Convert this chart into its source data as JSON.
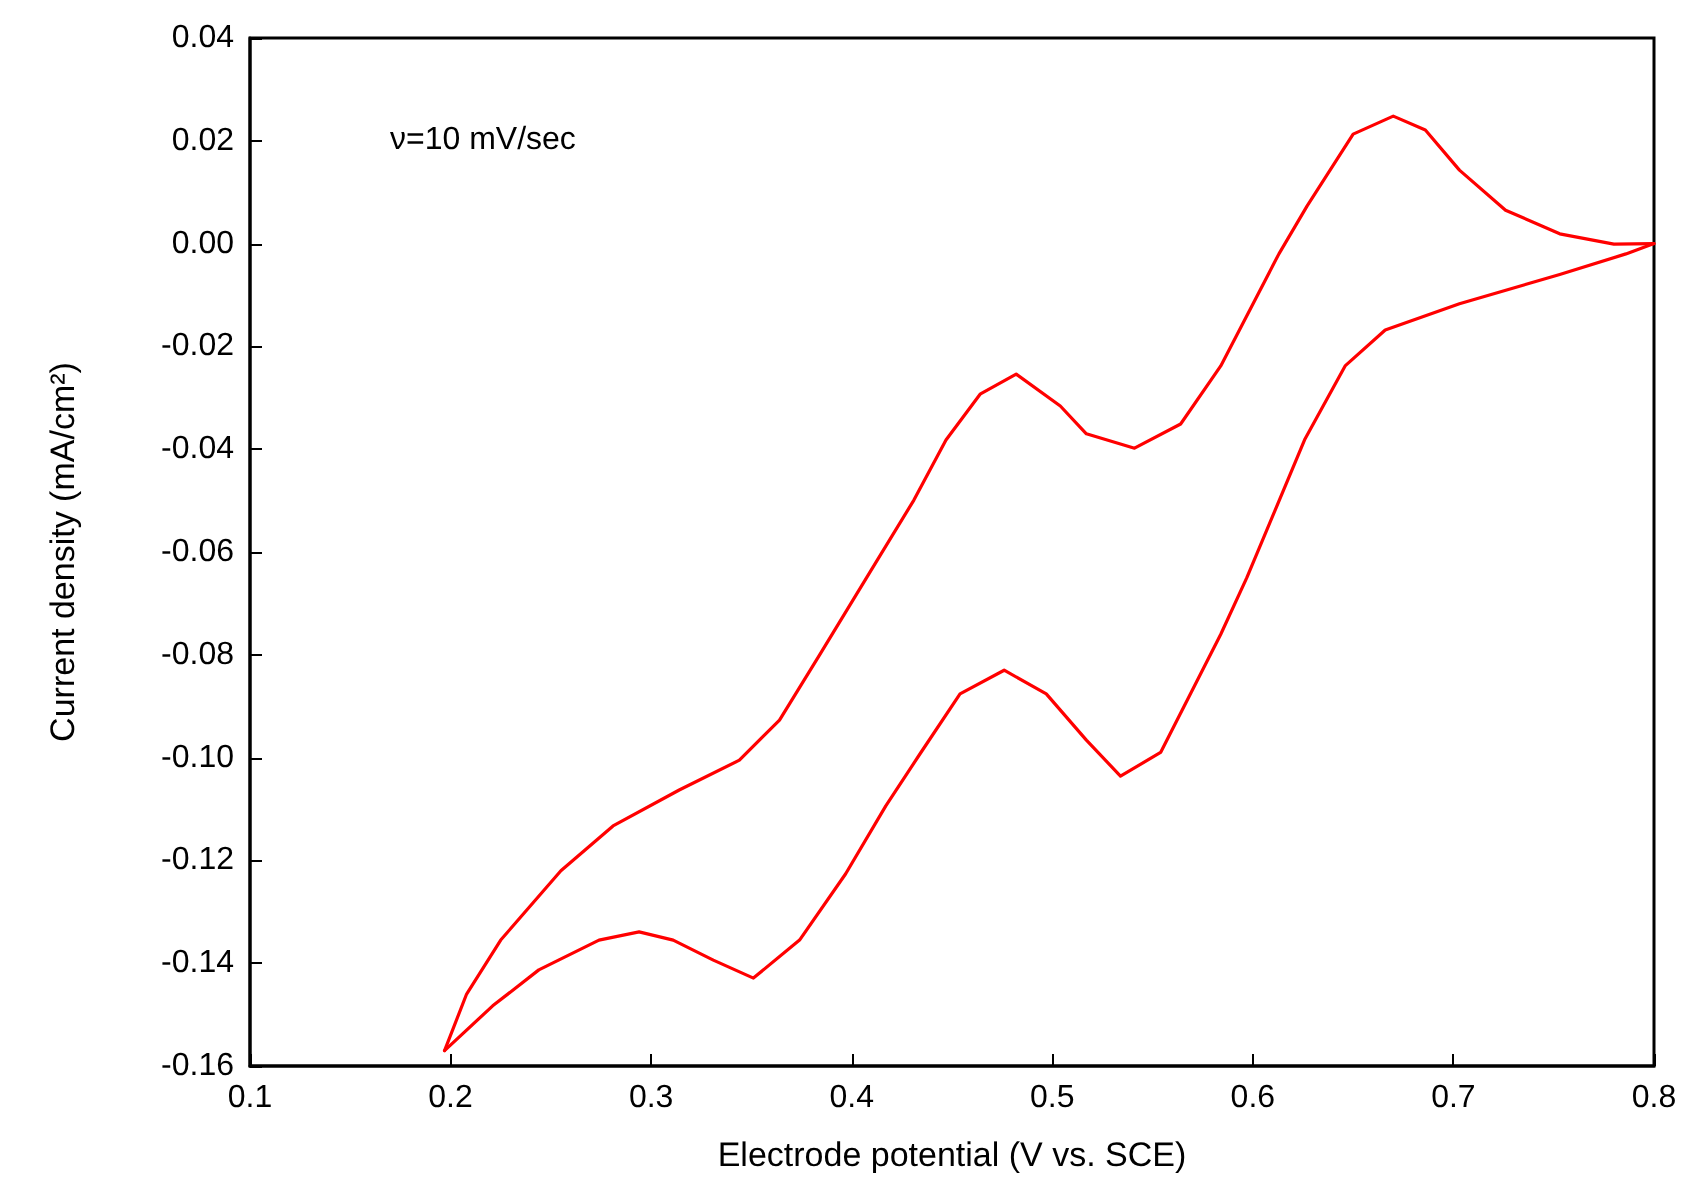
{
  "chart_data": {
    "type": "line",
    "xlabel": "Electrode potential (V vs. SCE)",
    "ylabel": "Current density (mA/cm²)",
    "annotations": [
      "ν=10 mV/sec"
    ],
    "xlim": [
      0.1,
      0.8
    ],
    "xticks": [
      0.1,
      0.2,
      0.3,
      0.4,
      0.5,
      0.6,
      0.7,
      0.8
    ],
    "ylim": [
      -0.16,
      0.04
    ],
    "yticks": [
      {
        "value": -0.16,
        "label": "-0.16"
      },
      {
        "value": -0.14,
        "label": "-0.14"
      },
      {
        "value": -0.12,
        "label": "-0.12"
      },
      {
        "value": -0.1,
        "label": "-0.10"
      },
      {
        "value": -0.08,
        "label": "-0.08"
      },
      {
        "value": -0.06,
        "label": "-0.06"
      },
      {
        "value": -0.04,
        "label": "-0.04"
      },
      {
        "value": -0.02,
        "label": "-0.02"
      },
      {
        "value": 0,
        "label": "0.00"
      },
      {
        "value": 0.02,
        "label": "0.02"
      },
      {
        "value": 0.04,
        "label": "0.04"
      }
    ],
    "grid": false,
    "marker": "none",
    "line_style": "solid",
    "series": [
      {
        "color": "#ff0000",
        "x": [
          0.197,
          0.221,
          0.244,
          0.274,
          0.294,
          0.311,
          0.331,
          0.351,
          0.374,
          0.397,
          0.417,
          0.434,
          0.454,
          0.476,
          0.497,
          0.517,
          0.534,
          0.554,
          0.584,
          0.597,
          0.626,
          0.646,
          0.666,
          0.703,
          0.753,
          0.786,
          0.8
        ],
        "values": [
          -0.157,
          -0.1483,
          -0.1413,
          -0.1355,
          -0.1339,
          -0.1355,
          -0.1394,
          -0.1429,
          -0.1355,
          -0.1226,
          -0.1094,
          -0.0993,
          -0.0876,
          -0.083,
          -0.0876,
          -0.0966,
          -0.1036,
          -0.099,
          -0.076,
          -0.065,
          -0.038,
          -0.0238,
          -0.0168,
          -0.0117,
          -0.006,
          -0.002,
          0.0
        ]
      },
      {
        "color": "#ff0000",
        "x": [
          0.197,
          0.208,
          0.225,
          0.255,
          0.281,
          0.314,
          0.344,
          0.364,
          0.384,
          0.411,
          0.431,
          0.447,
          0.464,
          0.482,
          0.504,
          0.517,
          0.541,
          0.564,
          0.584,
          0.613,
          0.627,
          0.65,
          0.67,
          0.686,
          0.703,
          0.726,
          0.753,
          0.78,
          0.8
        ],
        "values": [
          -0.157,
          -0.146,
          -0.1355,
          -0.122,
          -0.1133,
          -0.1063,
          -0.1005,
          -0.0927,
          -0.08,
          -0.0627,
          -0.0499,
          -0.0382,
          -0.0293,
          -0.0254,
          -0.0316,
          -0.037,
          -0.0398,
          -0.0351,
          -0.0238,
          -0.002,
          0.0073,
          0.0213,
          0.0248,
          0.0221,
          0.0143,
          0.0065,
          0.0019,
          -0.0001,
          0.0
        ]
      }
    ]
  }
}
